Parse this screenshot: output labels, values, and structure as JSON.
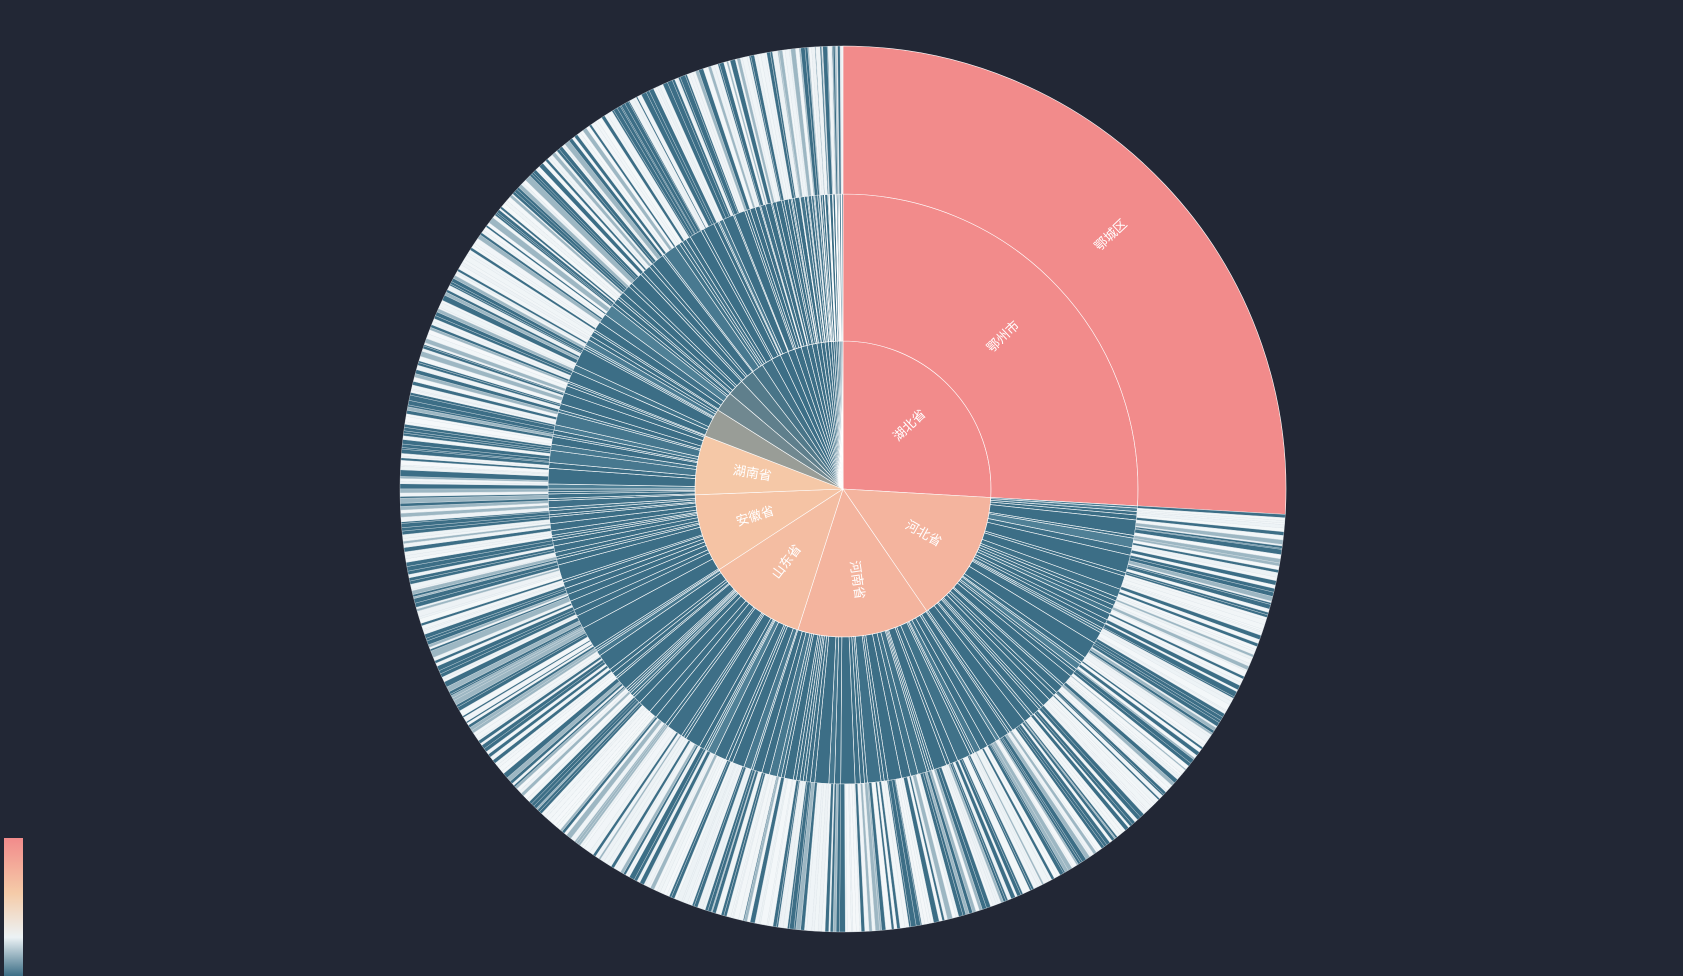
{
  "chart_data": {
    "type": "sunburst",
    "colors": {
      "background": "#222735",
      "scale": [
        "#3c6e86",
        "#ecf2f5",
        "#f5cba8",
        "#f28b8b"
      ]
    },
    "levels": [
      "province",
      "city",
      "district"
    ],
    "provinces": [
      {
        "name": "湖北省",
        "value": 1000,
        "cities": [
          {
            "name": "鄂州市",
            "value": 1000,
            "districts": [
              {
                "name": "鄂城区",
                "value": 1000
              }
            ]
          }
        ]
      },
      {
        "name": "河北省",
        "value": 560,
        "cities": []
      },
      {
        "name": "河南省",
        "value": 560,
        "cities": []
      },
      {
        "name": "山东省",
        "value": 420,
        "cities": []
      },
      {
        "name": "安徽省",
        "value": 330,
        "cities": []
      },
      {
        "name": "湖南省",
        "value": 250,
        "cities": []
      },
      {
        "name": "",
        "value": 120,
        "cities": []
      },
      {
        "name": "",
        "value": 85,
        "cities": []
      },
      {
        "name": "",
        "value": 70,
        "cities": []
      },
      {
        "name": "",
        "value": 60,
        "cities": []
      },
      {
        "name": "",
        "value": 50,
        "cities": []
      },
      {
        "name": "",
        "value": 45,
        "cities": []
      },
      {
        "name": "",
        "value": 40,
        "cities": []
      },
      {
        "name": "",
        "value": 35,
        "cities": []
      },
      {
        "name": "",
        "value": 30,
        "cities": []
      },
      {
        "name": "",
        "value": 28,
        "cities": []
      },
      {
        "name": "",
        "value": 25,
        "cities": []
      },
      {
        "name": "",
        "value": 22,
        "cities": []
      },
      {
        "name": "",
        "value": 20,
        "cities": []
      },
      {
        "name": "",
        "value": 18,
        "cities": []
      },
      {
        "name": "",
        "value": 16,
        "cities": []
      },
      {
        "name": "",
        "value": 14,
        "cities": []
      },
      {
        "name": "",
        "value": 12,
        "cities": []
      },
      {
        "name": "",
        "value": 10,
        "cities": []
      },
      {
        "name": "",
        "value": 9,
        "cities": []
      },
      {
        "name": "",
        "value": 8,
        "cities": []
      },
      {
        "name": "",
        "value": 7,
        "cities": []
      },
      {
        "name": "",
        "value": 6,
        "cities": []
      },
      {
        "name": "",
        "value": 5,
        "cities": []
      },
      {
        "name": "",
        "value": 4,
        "cities": []
      }
    ]
  }
}
